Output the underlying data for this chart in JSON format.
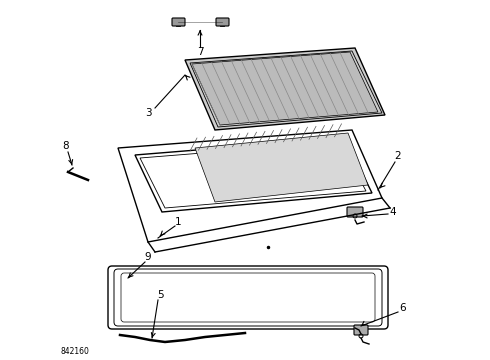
{
  "bg_color": "#ffffff",
  "line_color": "#000000",
  "part_number_text": "842160",
  "figsize": [
    4.9,
    3.6
  ],
  "dpi": 100
}
